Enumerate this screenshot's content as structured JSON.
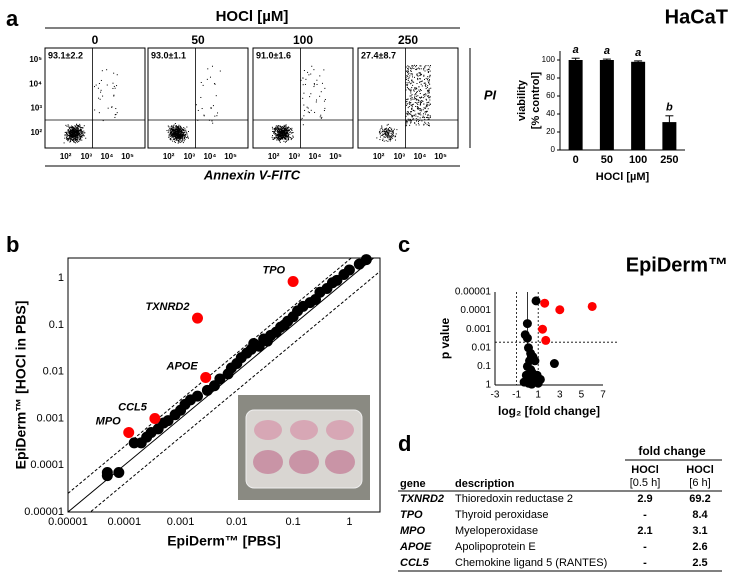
{
  "panel_labels": [
    "a",
    "b",
    "c",
    "d"
  ],
  "flow": {
    "title": "HOCl [µM]",
    "x_label": "Annexin V-FITC",
    "y_label": "PI",
    "panels": [
      {
        "dose": "0",
        "quadrant": "93.1±2.2"
      },
      {
        "dose": "50",
        "quadrant": "93.0±1.1"
      },
      {
        "dose": "100",
        "quadrant": "91.0±1.6"
      },
      {
        "dose": "250",
        "quadrant": "27.4±8.7"
      }
    ],
    "xlim": [
      10,
      700000
    ],
    "ylim": [
      24,
      310000
    ],
    "xticks": [
      {
        "value": 100,
        "label": "10²"
      },
      {
        "value": 1000,
        "label": "10³"
      },
      {
        "value": 10000,
        "label": "10⁴"
      },
      {
        "value": 100000,
        "label": "10⁵"
      }
    ],
    "yticks": [
      {
        "value": 100,
        "label": "10²"
      },
      {
        "value": 1000,
        "label": "10³"
      },
      {
        "value": 10000,
        "label": "10⁴"
      },
      {
        "value": 100000,
        "label": "10⁵"
      }
    ],
    "gates": {
      "x": 2000,
      "y": 340
    }
  },
  "chart_data": [
    {
      "type": "bar",
      "title": "HaCaT",
      "categories": [
        "0",
        "50",
        "100",
        "250"
      ],
      "values": [
        100,
        100,
        98,
        31
      ],
      "errors": [
        2,
        1,
        1,
        7
      ],
      "annotations": [
        "a",
        "a",
        "a",
        "b"
      ],
      "color": "#000000",
      "ylim": [
        0,
        110
      ],
      "yticks": [
        0,
        20,
        40,
        60,
        80,
        100
      ],
      "y_label": [
        "viability",
        "[% control]"
      ],
      "x_label": "HOCl [µM]"
    },
    {
      "type": "scatter",
      "log_x": true,
      "log_y": true,
      "x_label": "EpiDerm™ [PBS]",
      "y_label": "EpiDerm™ [HOCl in PBS]",
      "xlim": [
        1e-05,
        3.5
      ],
      "ylim": [
        1e-05,
        2.7
      ],
      "xticks": [
        1e-05,
        0.0001,
        0.001,
        0.01,
        0.1,
        1
      ],
      "yticks": [
        1e-05,
        0.0001,
        0.001,
        0.01,
        0.1,
        1
      ],
      "guide_lines": [
        {
          "factor": 1,
          "dash": false
        },
        {
          "factor": 2.5,
          "dash": true
        },
        {
          "factor": 0.4,
          "dash": true
        }
      ],
      "series": [
        {
          "color": "#000000",
          "x": [
            5e-05,
            5e-05,
            8e-05,
            0.00015,
            0.0002,
            0.00025,
            0.0003,
            0.0004,
            0.0005,
            0.0006,
            0.0008,
            0.001,
            0.0012,
            0.0015,
            0.002,
            0.003,
            0.004,
            0.005,
            0.007,
            0.008,
            0.01,
            0.012,
            0.015,
            0.018,
            0.02,
            0.025,
            0.03,
            0.035,
            0.04,
            0.05,
            0.06,
            0.07,
            0.08,
            0.1,
            0.12,
            0.15,
            0.2,
            0.25,
            0.3,
            0.4,
            0.5,
            0.6,
            0.8,
            1,
            1.5,
            2
          ],
          "y": [
            7e-05,
            6e-05,
            7e-05,
            0.0003,
            0.0003,
            0.0004,
            0.0005,
            0.0006,
            0.0008,
            0.0009,
            0.0012,
            0.0015,
            0.002,
            0.0025,
            0.003,
            0.004,
            0.005,
            0.007,
            0.009,
            0.012,
            0.015,
            0.02,
            0.025,
            0.03,
            0.04,
            0.035,
            0.05,
            0.045,
            0.06,
            0.07,
            0.09,
            0.1,
            0.12,
            0.15,
            0.2,
            0.25,
            0.3,
            0.35,
            0.5,
            0.6,
            0.8,
            0.9,
            1.2,
            1.5,
            2,
            2.5
          ]
        },
        {
          "color": "#ff0000",
          "x": [
            0.00012,
            0.00035,
            0.0028,
            0.002,
            0.1
          ],
          "y": [
            0.0005,
            0.001,
            0.0075,
            0.14,
            0.85
          ],
          "labels": [
            "MPO",
            "CCL5",
            "APOE",
            "TXNRD2",
            "TPO"
          ]
        }
      ]
    },
    {
      "type": "volcano",
      "title": "EpiDerm™",
      "x_label": "log₂ [fold change]",
      "y_label": "p value",
      "xlim": [
        -3,
        7
      ],
      "ylim": [
        1,
        1e-05
      ],
      "xticks": [
        -3,
        -1,
        1,
        3,
        5,
        7
      ],
      "yticks": [
        1,
        0.1,
        0.01,
        0.001,
        0.0001,
        1e-05
      ],
      "hlines": [
        {
          "value": 0.005,
          "dash": true
        }
      ],
      "vlines": [
        {
          "value": -1,
          "dash": true
        },
        {
          "value": 0,
          "dash": false
        },
        {
          "value": 1,
          "dash": true
        }
      ],
      "series": [
        {
          "color": "#000000",
          "x": [
            0.8,
            0,
            -0.2,
            0,
            0.1,
            0.3,
            0.2,
            0.5,
            0,
            0.3,
            -0.1,
            0.2,
            0.1,
            0.4,
            0.6,
            0.9,
            1.2,
            2.5,
            0.7,
            0.4,
            -0.3,
            1.0,
            0.5
          ],
          "y": [
            3e-05,
            0.0005,
            0.002,
            0.003,
            0.01,
            0.02,
            0.05,
            0.03,
            0.1,
            0.15,
            0.3,
            0.5,
            0.8,
            0.9,
            0.6,
            0.3,
            0.5,
            0.07,
            0.05,
            0.2,
            0.7,
            0.8,
            0.4
          ]
        },
        {
          "color": "#ff0000",
          "x": [
            1.6,
            3,
            6,
            1.4,
            1.7
          ],
          "y": [
            4e-05,
            9e-05,
            6e-05,
            0.001,
            0.004
          ]
        }
      ]
    }
  ],
  "table": {
    "group_header": "fold change",
    "columns": [
      "gene",
      "description",
      [
        "HOCl",
        "[0.5 h]"
      ],
      [
        "HOCl",
        "[6 h]"
      ]
    ],
    "rows": [
      [
        "TXNRD2",
        "Thioredoxin reductase 2",
        "2.9",
        "69.2"
      ],
      [
        "TPO",
        "Thyroid peroxidase",
        "-",
        "8.4"
      ],
      [
        "MPO",
        "Myeloperoxidase",
        "2.1",
        "3.1"
      ],
      [
        "APOE",
        "Apolipoprotein E",
        "-",
        "2.6"
      ],
      [
        "CCL5",
        "Chemokine ligand 5 (RANTES)",
        "-",
        "2.5"
      ]
    ]
  }
}
